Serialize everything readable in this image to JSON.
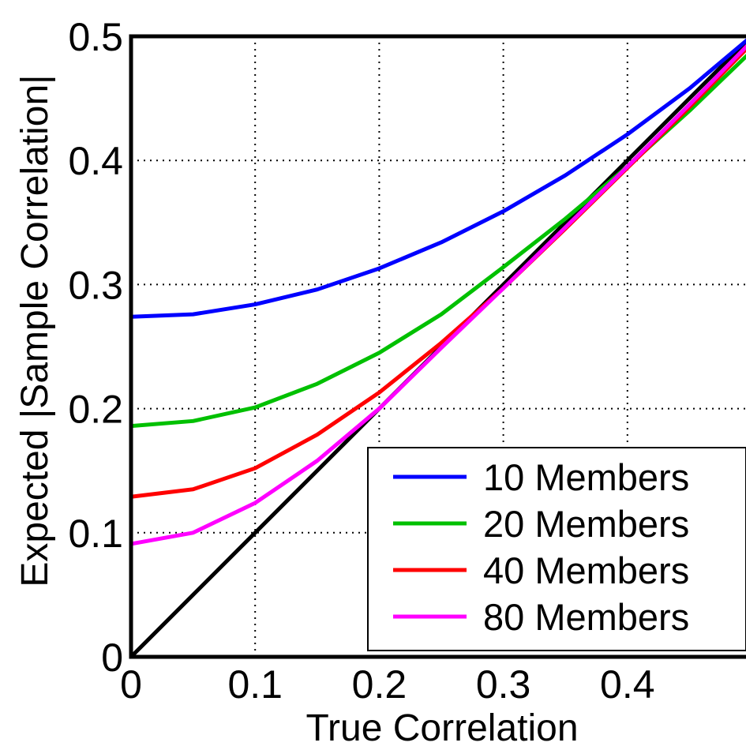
{
  "chart_data": {
    "type": "line",
    "xlabel": "True Correlation",
    "ylabel": "Expected |Sample Correlation|",
    "xlim": [
      0,
      0.5
    ],
    "ylim": [
      0,
      0.5
    ],
    "x_ticks": [
      "0",
      "0.1",
      "0.2",
      "0.3",
      "0.4"
    ],
    "y_ticks": [
      "0",
      "0.1",
      "0.2",
      "0.3",
      "0.4",
      "0.5"
    ],
    "grid": true,
    "legend_position": "lower-right",
    "x": [
      0,
      0.05,
      0.1,
      0.15,
      0.2,
      0.25,
      0.3,
      0.35,
      0.4,
      0.45,
      0.5
    ],
    "series": [
      {
        "name": "10 Members",
        "color": "#0000ff",
        "values": [
          0.274,
          0.276,
          0.284,
          0.296,
          0.313,
          0.334,
          0.359,
          0.388,
          0.421,
          0.458,
          0.5
        ]
      },
      {
        "name": "20 Members",
        "color": "#00c000",
        "values": [
          0.186,
          0.19,
          0.201,
          0.22,
          0.245,
          0.276,
          0.314,
          0.353,
          0.395,
          0.44,
          0.488
        ]
      },
      {
        "name": "40 Members",
        "color": "#ff0000",
        "values": [
          0.129,
          0.135,
          0.152,
          0.179,
          0.213,
          0.253,
          0.297,
          0.345,
          0.394,
          0.443,
          0.494
        ]
      },
      {
        "name": "80 Members",
        "color": "#ff00ff",
        "values": [
          0.091,
          0.1,
          0.124,
          0.158,
          0.2,
          0.249,
          0.297,
          0.346,
          0.395,
          0.445,
          0.496
        ]
      }
    ],
    "reference_line": {
      "color": "#000000",
      "x": [
        0,
        0.5
      ],
      "values": [
        0,
        0.5
      ]
    }
  }
}
